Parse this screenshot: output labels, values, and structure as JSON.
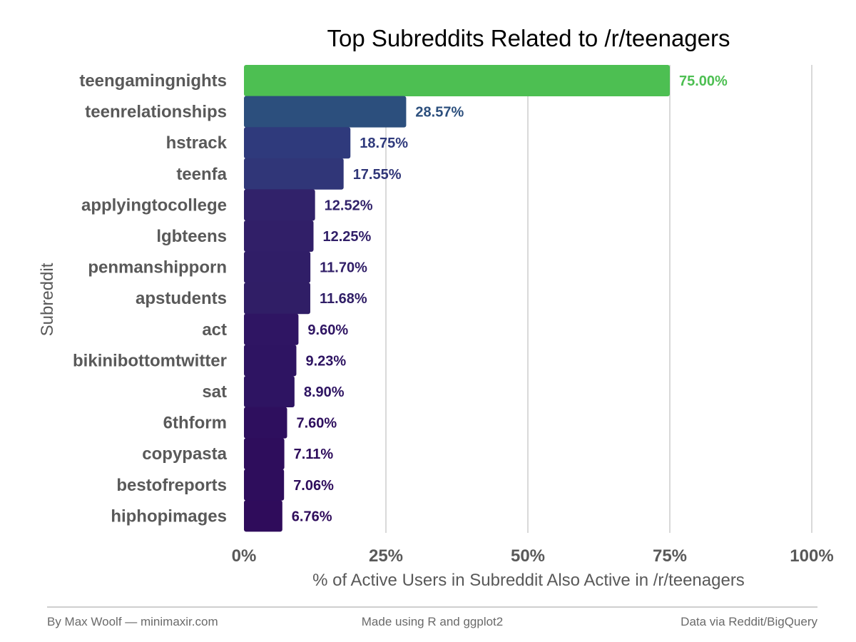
{
  "chart_data": {
    "type": "bar",
    "orientation": "horizontal",
    "title": "Top Subreddits Related to /r/teenagers",
    "xlabel": "% of Active Users in Subreddit Also Active in /r/teenagers",
    "ylabel": "Subreddit",
    "xlim": [
      0,
      100
    ],
    "xticks": [
      0,
      25,
      50,
      75,
      100
    ],
    "xtick_labels": [
      "0%",
      "25%",
      "50%",
      "75%",
      "100%"
    ],
    "grid": "vertical",
    "categories": [
      "teengamingnights",
      "teenrelationships",
      "hstrack",
      "teenfa",
      "applyingtocollege",
      "lgbteens",
      "penmanshipporn",
      "apstudents",
      "act",
      "bikinibottomtwitter",
      "sat",
      "6thform",
      "copypasta",
      "bestofreports",
      "hiphopimages"
    ],
    "values": [
      75.0,
      28.57,
      18.75,
      17.55,
      12.52,
      12.25,
      11.7,
      11.68,
      9.6,
      9.23,
      8.9,
      7.6,
      7.11,
      7.06,
      6.76
    ],
    "value_labels": [
      "75.00%",
      "28.57%",
      "18.75%",
      "17.55%",
      "12.52%",
      "12.25%",
      "11.70%",
      "11.68%",
      "9.60%",
      "9.23%",
      "8.90%",
      "7.60%",
      "7.11%",
      "7.06%",
      "6.76%"
    ],
    "colors": [
      "#4dbf52",
      "#2c4f7d",
      "#2f3a7c",
      "#303678",
      "#31226a",
      "#311f68",
      "#301e67",
      "#301e66",
      "#2f1563",
      "#2e1462",
      "#2e1462",
      "#2e0f5e",
      "#2e0d5c",
      "#2e0d5c",
      "#2f0c5b"
    ]
  },
  "footer": {
    "left": "By Max Woolf — minimaxir.com",
    "center": "Made using R and ggplot2",
    "right": "Data via Reddit/BigQuery"
  },
  "colors": {
    "grid": "#d9d9d9",
    "footer_rule": "#bfbfbf",
    "text": "#595959"
  }
}
